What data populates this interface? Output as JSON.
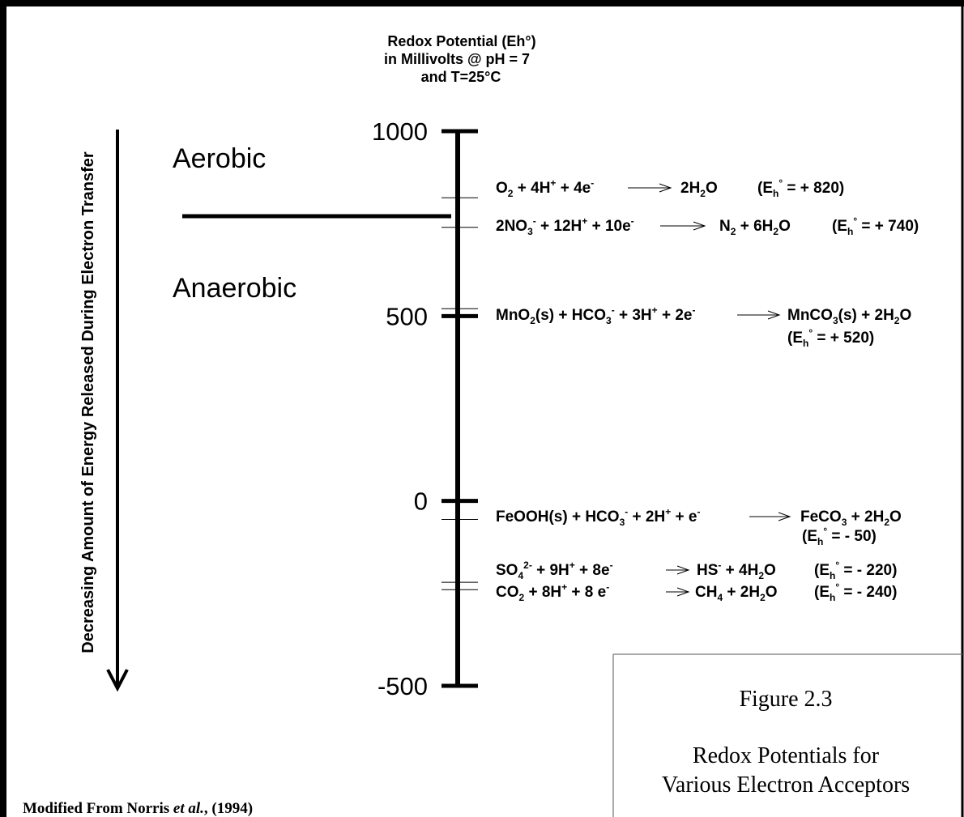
{
  "axis": {
    "title": [
      "Redox Potential (Eh°)",
      "in Millivolts @ pH = 7",
      "and T=25°C"
    ],
    "ylim": [
      -500,
      1000
    ],
    "yticks": [
      1000,
      500,
      0,
      -500
    ]
  },
  "side_label": "Decreasing Amount of Energy Released During Electron Transfer",
  "zones": [
    "Aerobic",
    "Anaerobic"
  ],
  "reactions": [
    {
      "value": 820,
      "reactants": [
        {
          "text": "O"
        },
        {
          "text": "2",
          "pos": "sub"
        },
        {
          "text": " + 4H"
        },
        {
          "text": "+",
          "pos": "sup"
        },
        {
          "text": " + 4e"
        },
        {
          "text": "-",
          "pos": "sup"
        }
      ],
      "products": [
        {
          "text": "2H"
        },
        {
          "text": "2",
          "pos": "sub"
        },
        {
          "text": "O"
        }
      ],
      "eh": [
        {
          "text": "(E"
        },
        {
          "text": "h",
          "pos": "sub"
        },
        {
          "text": "°",
          "pos": "sup"
        },
        {
          "text": " = + 820)"
        }
      ]
    },
    {
      "value": 740,
      "reactants": [
        {
          "text": "2NO"
        },
        {
          "text": "3",
          "pos": "sub"
        },
        {
          "text": "-",
          "pos": "sup"
        },
        {
          "text": " + 12H"
        },
        {
          "text": "+",
          "pos": "sup"
        },
        {
          "text": " + 10e"
        },
        {
          "text": "-",
          "pos": "sup"
        }
      ],
      "products": [
        {
          "text": "N"
        },
        {
          "text": "2",
          "pos": "sub"
        },
        {
          "text": " + 6H"
        },
        {
          "text": "2",
          "pos": "sub"
        },
        {
          "text": "O"
        }
      ],
      "eh": [
        {
          "text": "(E"
        },
        {
          "text": "h",
          "pos": "sub"
        },
        {
          "text": "°",
          "pos": "sup"
        },
        {
          "text": " = + 740)"
        }
      ]
    },
    {
      "value": 520,
      "reactants": [
        {
          "text": "MnO"
        },
        {
          "text": "2",
          "pos": "sub"
        },
        {
          "text": "(s) + HCO"
        },
        {
          "text": "3",
          "pos": "sub"
        },
        {
          "text": "-",
          "pos": "sup"
        },
        {
          "text": " + 3H"
        },
        {
          "text": "+",
          "pos": "sup"
        },
        {
          "text": " + 2e"
        },
        {
          "text": "-",
          "pos": "sup"
        }
      ],
      "products": [
        {
          "text": "MnCO"
        },
        {
          "text": "3",
          "pos": "sub"
        },
        {
          "text": "(s) + 2H"
        },
        {
          "text": "2",
          "pos": "sub"
        },
        {
          "text": "O"
        }
      ],
      "eh": [
        {
          "text": "(E"
        },
        {
          "text": "h",
          "pos": "sub"
        },
        {
          "text": "°",
          "pos": "sup"
        },
        {
          "text": " = + 520)"
        }
      ]
    },
    {
      "value": -50,
      "reactants": [
        {
          "text": "FeOOH(s) + HCO"
        },
        {
          "text": "3",
          "pos": "sub"
        },
        {
          "text": "-",
          "pos": "sup"
        },
        {
          "text": " + 2H"
        },
        {
          "text": "+",
          "pos": "sup"
        },
        {
          "text": " + e"
        },
        {
          "text": "-",
          "pos": "sup"
        }
      ],
      "products": [
        {
          "text": "FeCO"
        },
        {
          "text": "3",
          "pos": "sub"
        },
        {
          "text": " + 2H"
        },
        {
          "text": "2",
          "pos": "sub"
        },
        {
          "text": "O"
        }
      ],
      "eh": [
        {
          "text": "(E"
        },
        {
          "text": "h",
          "pos": "sub"
        },
        {
          "text": "°",
          "pos": "sup"
        },
        {
          "text": " = - 50)"
        }
      ]
    },
    {
      "value": -220,
      "reactants": [
        {
          "text": "SO"
        },
        {
          "text": "4",
          "pos": "sub"
        },
        {
          "text": "2-",
          "pos": "sup"
        },
        {
          "text": " + 9H"
        },
        {
          "text": "+",
          "pos": "sup"
        },
        {
          "text": " + 8e"
        },
        {
          "text": "-",
          "pos": "sup"
        }
      ],
      "products": [
        {
          "text": "HS"
        },
        {
          "text": "-",
          "pos": "sup"
        },
        {
          "text": " + 4H"
        },
        {
          "text": "2",
          "pos": "sub"
        },
        {
          "text": "O"
        }
      ],
      "eh": [
        {
          "text": "(E"
        },
        {
          "text": "h",
          "pos": "sub"
        },
        {
          "text": "°",
          "pos": "sup"
        },
        {
          "text": " = - 220)"
        }
      ]
    },
    {
      "value": -240,
      "reactants": [
        {
          "text": "CO"
        },
        {
          "text": "2",
          "pos": "sub"
        },
        {
          "text": " + 8H"
        },
        {
          "text": "+",
          "pos": "sup"
        },
        {
          "text": " + 8 e"
        },
        {
          "text": "-",
          "pos": "sup"
        }
      ],
      "products": [
        {
          "text": "CH"
        },
        {
          "text": "4",
          "pos": "sub"
        },
        {
          "text": " + 2H"
        },
        {
          "text": "2",
          "pos": "sub"
        },
        {
          "text": "O"
        }
      ],
      "eh": [
        {
          "text": "(E"
        },
        {
          "text": "h",
          "pos": "sub"
        },
        {
          "text": "°",
          "pos": "sup"
        },
        {
          "text": " = - 240)"
        }
      ]
    }
  ],
  "caption": {
    "figure": "Figure 2.3",
    "title": [
      "Redox Potentials for",
      "Various Electron Acceptors"
    ]
  },
  "source": [
    {
      "text": "Modified From Norris "
    },
    {
      "text": "et al.",
      "style": "italic"
    },
    {
      "text": ", (1994)"
    }
  ]
}
